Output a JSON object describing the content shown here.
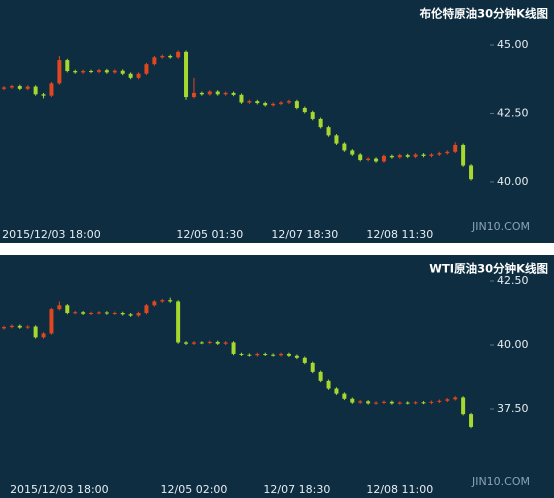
{
  "chart_data": [
    {
      "type": "candlestick",
      "title": "布伦特原油30分钟K线图",
      "watermark": "JIN10.COM",
      "up_color": "#e0461f",
      "down_color": "#a6d82e",
      "categories": [
        null,
        null,
        null,
        null,
        null,
        null,
        "2015/12/03 18:00",
        null,
        null,
        null,
        null,
        null,
        null,
        null,
        null,
        null,
        null,
        null,
        null,
        null,
        null,
        null,
        null,
        null,
        null,
        null,
        "12/05 01:30",
        null,
        null,
        null,
        null,
        null,
        null,
        null,
        null,
        null,
        null,
        null,
        "12/07 18:30",
        null,
        null,
        null,
        null,
        null,
        null,
        null,
        null,
        null,
        null,
        null,
        "12/08 11:30",
        null,
        null,
        null,
        null,
        null,
        null,
        null,
        null,
        null
      ],
      "open": [
        43.4,
        43.45,
        43.5,
        43.4,
        43.48,
        43.2,
        43.15,
        43.6,
        44.45,
        44.05,
        44.0,
        44.05,
        44.02,
        44.08,
        44.0,
        44.06,
        43.95,
        43.8,
        43.95,
        44.3,
        44.55,
        44.6,
        44.55,
        44.75,
        43.1,
        43.25,
        43.2,
        43.3,
        43.2,
        43.25,
        43.18,
        42.9,
        42.95,
        42.88,
        42.8,
        42.85,
        42.9,
        42.95,
        42.7,
        42.55,
        42.3,
        42.0,
        41.7,
        41.4,
        41.15,
        41.0,
        40.8,
        40.85,
        40.75,
        40.95,
        40.9,
        40.98,
        40.92,
        41.0,
        40.95,
        41.0,
        41.05,
        41.1,
        41.35,
        40.6
      ],
      "high": [
        43.5,
        43.55,
        43.55,
        43.53,
        43.53,
        43.25,
        43.65,
        44.6,
        44.5,
        44.1,
        44.1,
        44.1,
        44.13,
        44.13,
        44.11,
        44.11,
        44.0,
        44.0,
        44.35,
        44.6,
        44.65,
        44.65,
        44.8,
        44.8,
        43.8,
        43.3,
        43.35,
        43.35,
        43.3,
        43.3,
        43.23,
        43.0,
        43.0,
        42.93,
        42.9,
        42.95,
        43.0,
        43.0,
        42.75,
        42.6,
        42.35,
        42.05,
        41.75,
        41.45,
        41.2,
        41.05,
        40.9,
        40.9,
        41.0,
        41.0,
        41.03,
        41.03,
        41.05,
        41.05,
        41.05,
        41.1,
        41.15,
        41.45,
        41.4,
        40.65
      ],
      "low": [
        43.35,
        43.4,
        43.35,
        43.35,
        43.15,
        43.05,
        43.1,
        43.55,
        44.0,
        43.95,
        43.95,
        43.97,
        43.97,
        43.95,
        43.95,
        43.9,
        43.75,
        43.75,
        43.9,
        44.25,
        44.5,
        44.5,
        44.5,
        43.0,
        43.05,
        43.15,
        43.15,
        43.15,
        43.15,
        43.13,
        42.85,
        42.85,
        42.83,
        42.75,
        42.75,
        42.8,
        42.85,
        42.65,
        42.5,
        42.25,
        41.95,
        41.65,
        41.35,
        41.1,
        40.95,
        40.75,
        40.75,
        40.7,
        40.7,
        40.85,
        40.85,
        40.87,
        40.87,
        40.9,
        40.9,
        40.95,
        41.0,
        41.05,
        40.55,
        40.05
      ],
      "close": [
        43.45,
        43.5,
        43.4,
        43.48,
        43.2,
        43.15,
        43.6,
        44.45,
        44.05,
        44.0,
        44.05,
        44.02,
        44.08,
        44.0,
        44.06,
        43.95,
        43.8,
        43.95,
        44.3,
        44.55,
        44.6,
        44.55,
        44.75,
        43.1,
        43.25,
        43.2,
        43.3,
        43.2,
        43.25,
        43.18,
        42.9,
        42.95,
        42.88,
        42.8,
        42.85,
        42.9,
        42.95,
        42.7,
        42.55,
        42.3,
        42.0,
        41.7,
        41.4,
        41.15,
        41.0,
        40.8,
        40.85,
        40.75,
        40.95,
        40.9,
        40.98,
        40.92,
        41.0,
        40.95,
        41.0,
        41.05,
        41.1,
        41.35,
        40.6,
        40.1
      ],
      "ylim": [
        38.5,
        46.3
      ],
      "yticks": [
        {
          "value": 45,
          "label": "45.00"
        },
        {
          "value": 42.5,
          "label": "42.50"
        },
        {
          "value": 40,
          "label": "40.00"
        }
      ]
    },
    {
      "type": "candlestick",
      "title": "WTI原油30分钟K线图",
      "watermark": "JIN10.COM",
      "up_color": "#e0461f",
      "down_color": "#a6d82e",
      "categories": [
        null,
        null,
        null,
        null,
        null,
        null,
        null,
        "2015/12/03 18:00",
        null,
        null,
        null,
        null,
        null,
        null,
        null,
        null,
        null,
        null,
        null,
        null,
        null,
        null,
        null,
        null,
        "12/05 02:00",
        null,
        null,
        null,
        null,
        null,
        null,
        null,
        null,
        null,
        null,
        null,
        null,
        "12/07 18:30",
        null,
        null,
        null,
        null,
        null,
        null,
        null,
        null,
        null,
        null,
        null,
        null,
        "12/08 11:00",
        null,
        null,
        null,
        null,
        null,
        null,
        null,
        null,
        null
      ],
      "open": [
        40.65,
        40.7,
        40.75,
        40.68,
        40.72,
        40.3,
        40.45,
        41.4,
        41.55,
        41.25,
        41.28,
        41.22,
        41.25,
        41.27,
        41.23,
        41.25,
        41.2,
        41.15,
        41.25,
        41.55,
        41.7,
        41.75,
        41.7,
        40.1,
        40.05,
        40.1,
        40.08,
        40.12,
        40.05,
        40.1,
        39.65,
        39.62,
        39.6,
        39.65,
        39.62,
        39.6,
        39.65,
        39.58,
        39.5,
        39.3,
        38.95,
        38.6,
        38.3,
        38.1,
        37.9,
        37.75,
        37.8,
        37.72,
        37.75,
        37.78,
        37.72,
        37.75,
        37.73,
        37.76,
        37.74,
        37.78,
        37.82,
        37.88,
        37.95,
        37.3
      ],
      "high": [
        40.75,
        40.8,
        40.8,
        40.77,
        40.77,
        40.5,
        41.45,
        41.7,
        41.6,
        41.33,
        41.33,
        41.3,
        41.32,
        41.32,
        41.3,
        41.3,
        41.25,
        41.3,
        41.6,
        41.75,
        41.8,
        41.85,
        41.75,
        40.15,
        40.15,
        40.15,
        40.17,
        40.17,
        40.15,
        40.15,
        39.7,
        39.67,
        39.7,
        39.7,
        39.67,
        39.7,
        39.7,
        39.63,
        39.55,
        39.35,
        39.0,
        38.65,
        38.35,
        38.15,
        37.95,
        37.85,
        37.85,
        37.8,
        37.83,
        37.83,
        37.8,
        37.8,
        37.81,
        37.81,
        37.83,
        37.87,
        37.93,
        38.0,
        38.0,
        37.35
      ],
      "low": [
        40.6,
        40.65,
        40.63,
        40.63,
        40.25,
        40.25,
        40.4,
        41.35,
        41.2,
        41.2,
        41.17,
        41.17,
        41.2,
        41.18,
        41.18,
        41.15,
        41.1,
        41.1,
        41.2,
        41.5,
        41.65,
        41.65,
        40.05,
        40.0,
        40.0,
        40.03,
        40.03,
        40.0,
        40.0,
        39.6,
        39.57,
        39.55,
        39.55,
        39.57,
        39.55,
        39.55,
        39.53,
        39.45,
        39.25,
        38.9,
        38.55,
        38.25,
        38.05,
        37.85,
        37.7,
        37.7,
        37.67,
        37.67,
        37.7,
        37.67,
        37.67,
        37.68,
        37.68,
        37.69,
        37.69,
        37.73,
        37.77,
        37.83,
        37.25,
        36.75
      ],
      "close": [
        40.7,
        40.75,
        40.68,
        40.72,
        40.3,
        40.45,
        41.4,
        41.55,
        41.25,
        41.28,
        41.22,
        41.25,
        41.27,
        41.23,
        41.25,
        41.2,
        41.15,
        41.25,
        41.55,
        41.7,
        41.75,
        41.7,
        40.1,
        40.05,
        40.1,
        40.08,
        40.12,
        40.05,
        40.1,
        39.65,
        39.62,
        39.6,
        39.65,
        39.62,
        39.6,
        39.65,
        39.58,
        39.5,
        39.3,
        38.95,
        38.6,
        38.3,
        38.1,
        37.9,
        37.75,
        37.8,
        37.72,
        37.75,
        37.78,
        37.72,
        37.75,
        37.73,
        37.76,
        37.74,
        37.78,
        37.82,
        37.88,
        37.95,
        37.3,
        36.8
      ],
      "ylim": [
        35.2,
        43.3
      ],
      "yticks": [
        {
          "value": 42.5,
          "label": "42.50"
        },
        {
          "value": 40,
          "label": "40.00"
        },
        {
          "value": 37.5,
          "label": "37.50"
        }
      ]
    }
  ]
}
